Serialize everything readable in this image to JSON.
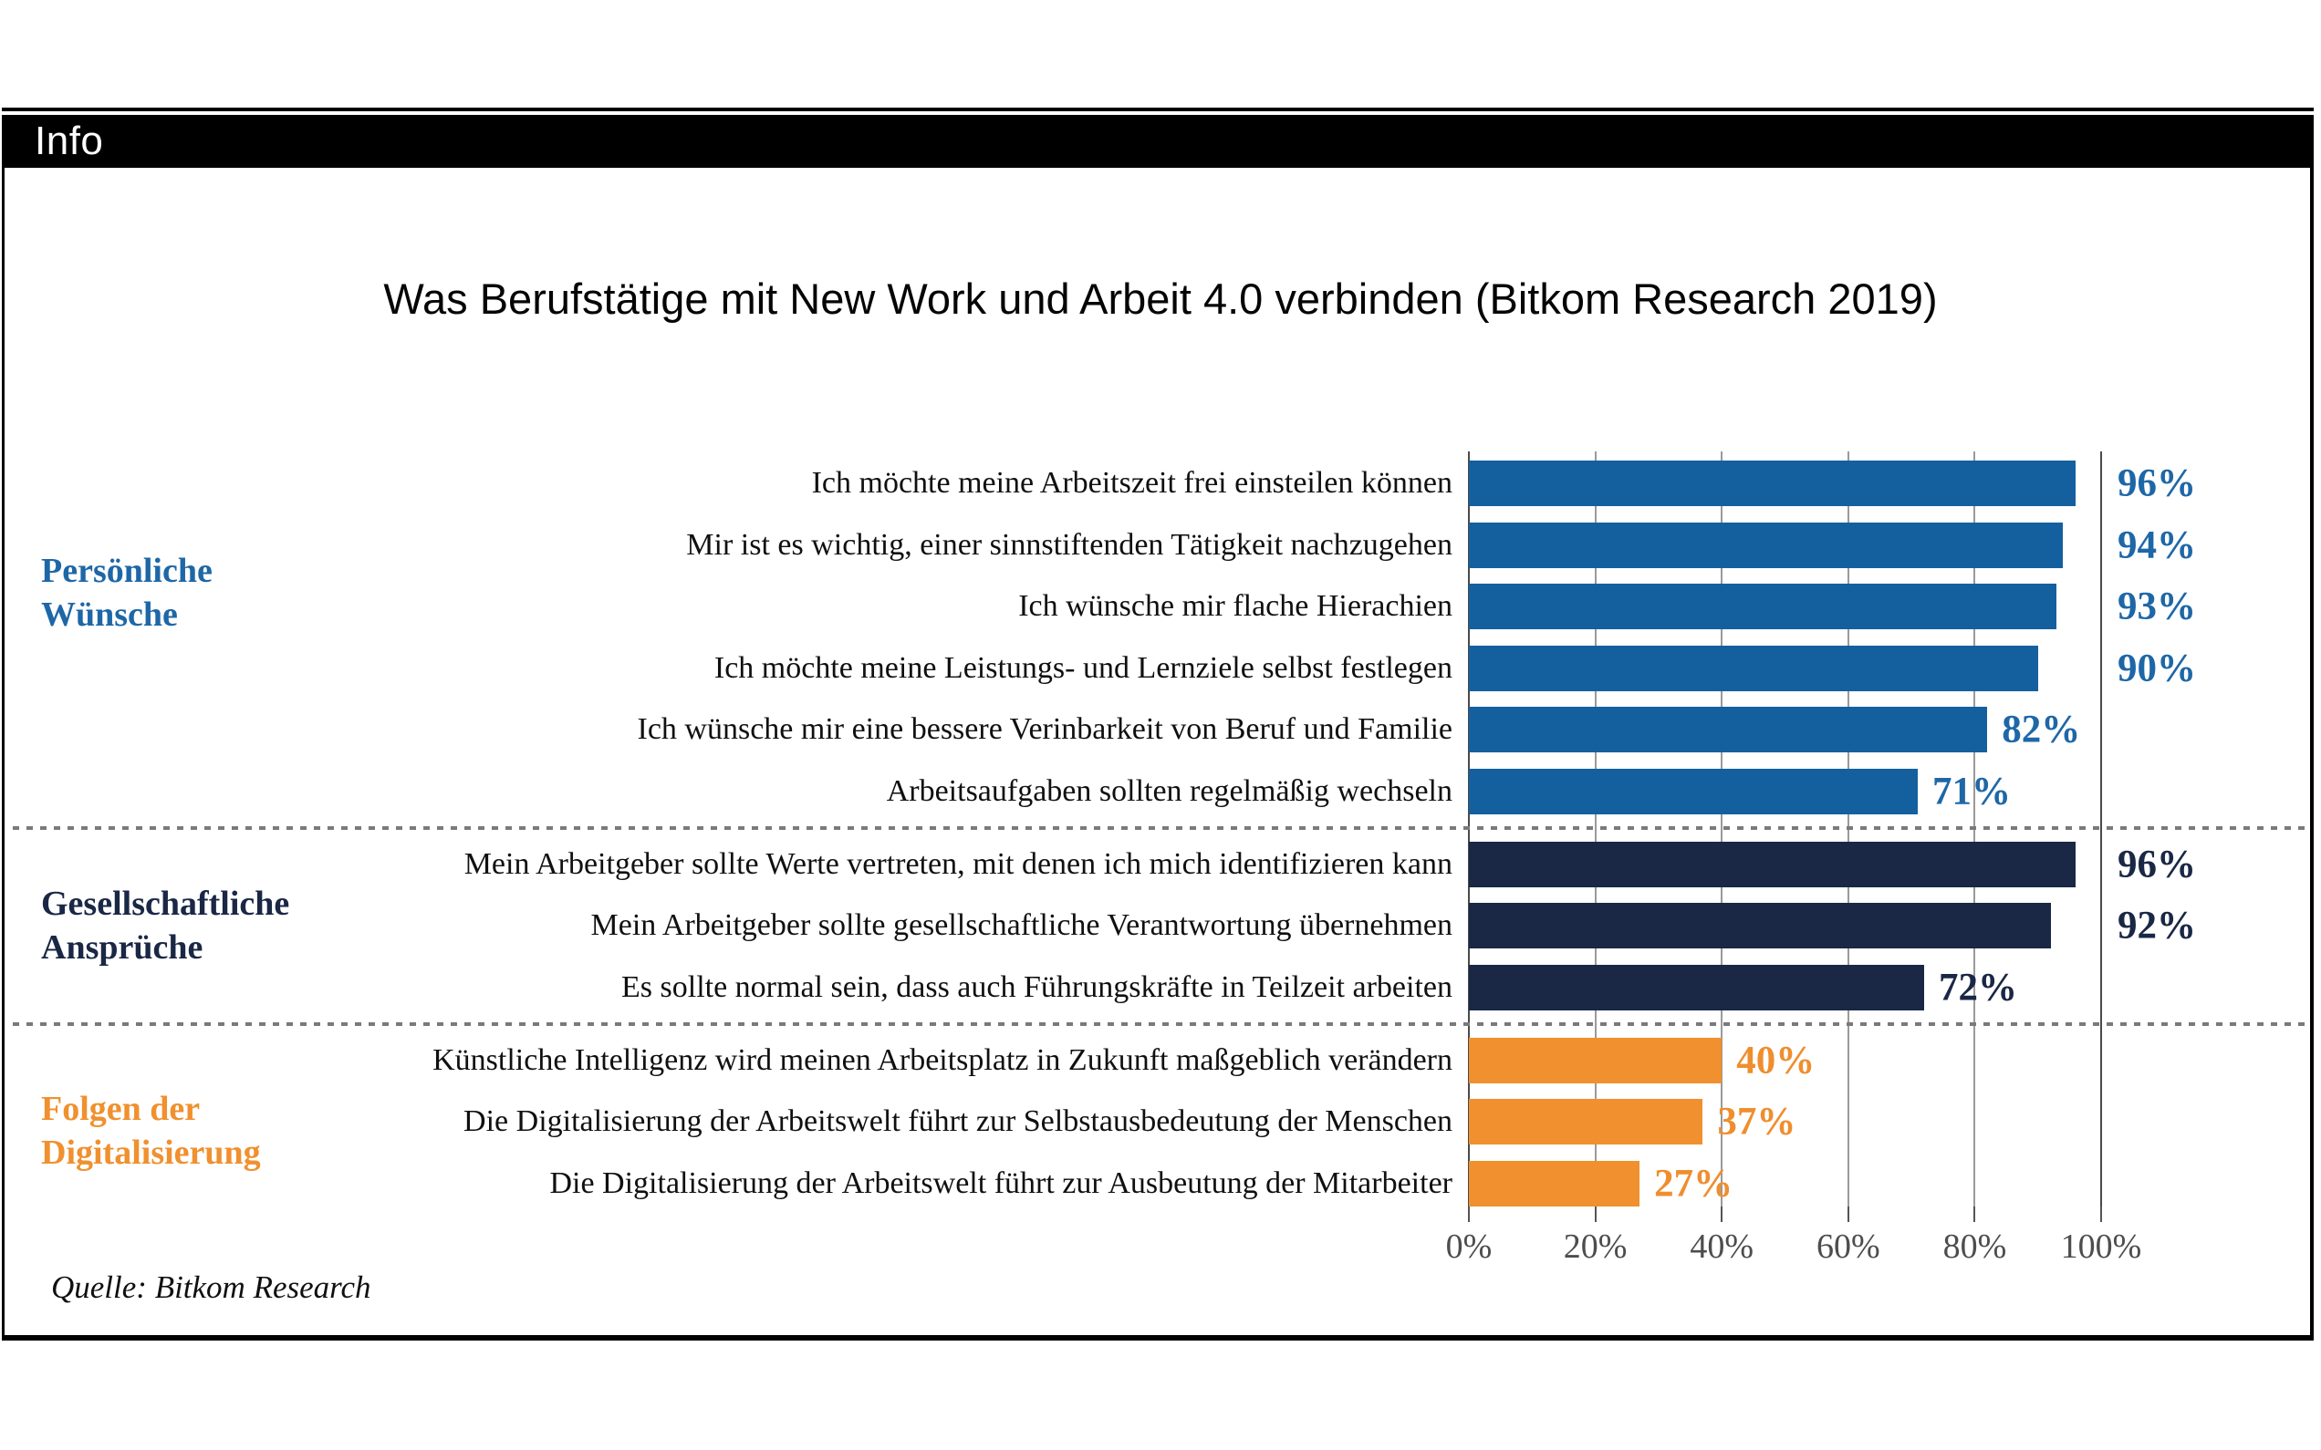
{
  "page": {
    "tab_label": "Info",
    "source_note": "Quelle: Bitkom Research"
  },
  "chart_data": {
    "type": "bar",
    "orientation": "horizontal",
    "title": "Was Berufstätige mit New Work und Arbeit 4.0 verbinden (Bitkom Research 2019)",
    "value_unit": "%",
    "xlim": [
      0,
      100
    ],
    "grid": true,
    "legend_position": "none",
    "gridline_color": "#9a9a9a",
    "axis_line_color": "#4a4a4a",
    "x_ticks": [
      {
        "value": 0,
        "label": "0%"
      },
      {
        "value": 20,
        "label": "20%"
      },
      {
        "value": 40,
        "label": "40%"
      },
      {
        "value": 60,
        "label": "60%"
      },
      {
        "value": 80,
        "label": "80%"
      },
      {
        "value": 100,
        "label": "100%"
      }
    ],
    "groups": [
      {
        "label": "Persönliche Wünsche",
        "label_lines": [
          "Persönliche",
          "Wünsche"
        ],
        "color": "#14609f",
        "value_label_color": "#1e67a7",
        "items": [
          {
            "label": "Ich möchte meine Arbeitszeit frei einsteilen können",
            "value": 96,
            "value_label": "96%"
          },
          {
            "label": "Mir ist es wichtig, einer sinnstiftenden Tätigkeit nachzugehen",
            "value": 94,
            "value_label": "94%"
          },
          {
            "label": "Ich wünsche mir flache Hierachien",
            "value": 93,
            "value_label": "93%"
          },
          {
            "label": "Ich möchte meine Leistungs- und Lernziele selbst festlegen",
            "value": 90,
            "value_label": "90%"
          },
          {
            "label": "Ich wünsche mir eine bessere Verinbarkeit von Beruf und Familie",
            "value": 82,
            "value_label": "82%"
          },
          {
            "label": "Arbeitsaufgaben sollten regelmäßig wechseln",
            "value": 71,
            "value_label": "71%"
          }
        ]
      },
      {
        "label": "Gesellschaftliche Ansprüche",
        "label_lines": [
          "Gesellschaftliche",
          "Ansprüche"
        ],
        "color": "#1a2745",
        "value_label_color": "#1a2745",
        "items": [
          {
            "label": "Mein Arbeitgeber sollte Werte vertreten, mit denen ich mich identifizieren kann",
            "value": 96,
            "value_label": "96%"
          },
          {
            "label": "Mein Arbeitgeber sollte gesellschaftliche Verantwortung übernehmen",
            "value": 92,
            "value_label": "92%"
          },
          {
            "label": "Es sollte normal sein, dass auch Führungskräfte in Teilzeit arbeiten",
            "value": 72,
            "value_label": "72%"
          }
        ]
      },
      {
        "label": "Folgen der Digitalisierung",
        "label_lines": [
          "Folgen der",
          "Digitalisierung"
        ],
        "color": "#f0902e",
        "value_label_color": "#ef8e2e",
        "items": [
          {
            "label": "Künstliche Intelligenz wird meinen Arbeitsplatz in Zukunft maßgeblich verändern",
            "value": 40,
            "value_label": "40%"
          },
          {
            "label": "Die Digitalisierung der Arbeitswelt führt zur Selbstausbedeutung der Menschen",
            "value": 37,
            "value_label": "37%"
          },
          {
            "label": "Die Digitalisierung der Arbeitswelt führt zur Ausbeutung der Mitarbeiter",
            "value": 27,
            "value_label": "27%"
          }
        ]
      }
    ]
  }
}
